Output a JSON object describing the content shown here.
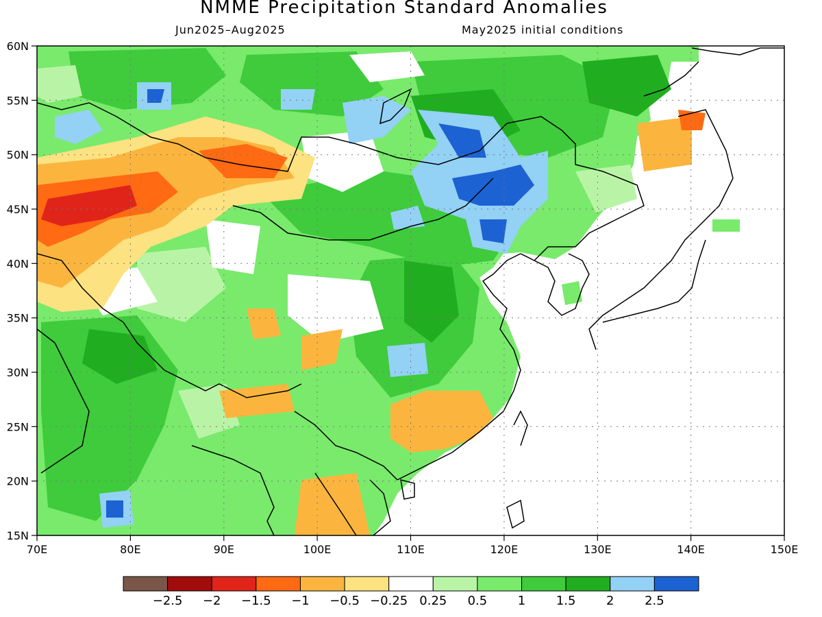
{
  "header": {
    "title": "NMME Precipitation Standard Anomalies",
    "period": "Jun2025–Aug2025",
    "init": "May2025 initial conditions"
  },
  "map": {
    "lon_range": [
      70,
      150
    ],
    "lat_range": [
      15,
      60
    ],
    "lon_ticks": [
      "70E",
      "80E",
      "90E",
      "100E",
      "110E",
      "120E",
      "130E",
      "140E",
      "150E"
    ],
    "lat_ticks": [
      "15N",
      "20N",
      "25N",
      "30N",
      "35N",
      "40N",
      "45N",
      "50N",
      "55N",
      "60N"
    ]
  },
  "legend": {
    "colors": [
      "#7a5648",
      "#a10c0c",
      "#e0241a",
      "#ff6a13",
      "#fbb53e",
      "#fde281",
      "#ffffff",
      "#b9f4a6",
      "#79ea6c",
      "#3fcb3c",
      "#20ae20",
      "#93d1f5",
      "#1d62d2"
    ],
    "labels": [
      "−2.5",
      "−2",
      "−1.5",
      "−1",
      "−0.5",
      "−0.25",
      "0.25",
      "0.5",
      "1",
      "1.5",
      "2",
      "2.5"
    ]
  }
}
